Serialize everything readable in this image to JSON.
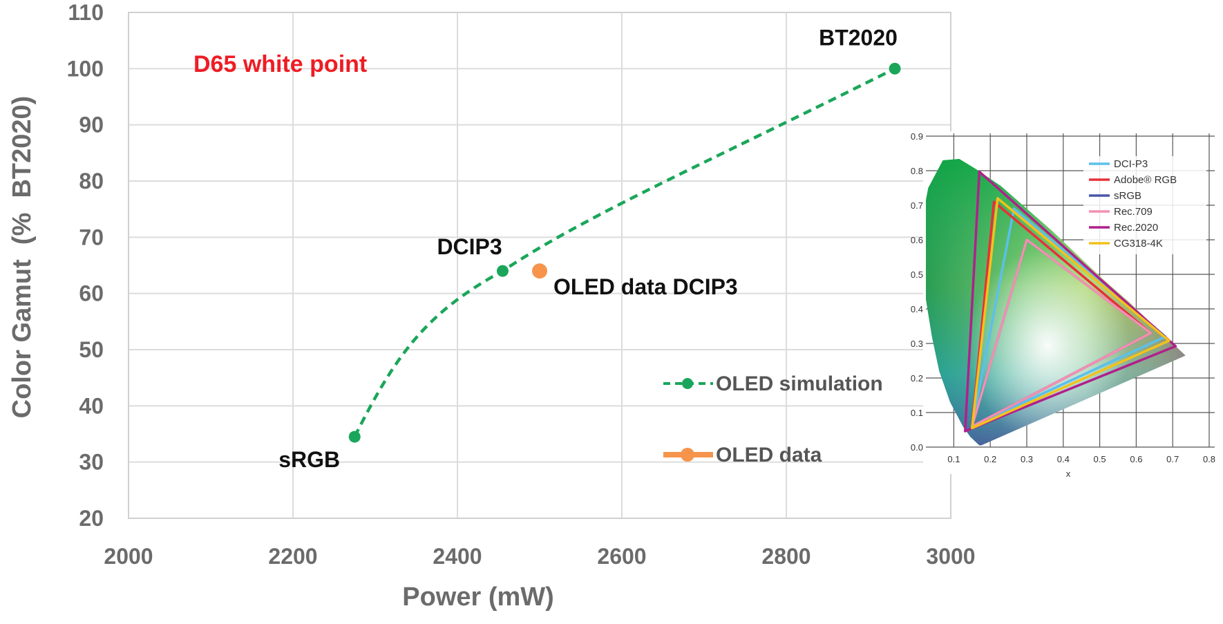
{
  "chart_data": {
    "type": "line",
    "xlabel": "Power (mW)",
    "ylabel": "Color Gamut  (%  BT2020)",
    "xlim": [
      2000,
      3000
    ],
    "ylim": [
      20,
      110
    ],
    "xticks": [
      "2000",
      "2200",
      "2400",
      "2600",
      "2800",
      "3000"
    ],
    "yticks": [
      "20",
      "30",
      "40",
      "50",
      "60",
      "70",
      "80",
      "90",
      "100",
      "110"
    ],
    "grid": true,
    "series": [
      {
        "name": "OLED simulation",
        "style": "dashed-markers",
        "color": "#1aa65a",
        "points": [
          {
            "x": 2275,
            "y": 34.5,
            "label": "sRGB"
          },
          {
            "x": 2455,
            "y": 64,
            "label": "DCIP3"
          },
          {
            "x": 2932,
            "y": 100,
            "label": "BT2020"
          }
        ]
      },
      {
        "name": "OLED data",
        "style": "marker",
        "color": "#f6944c",
        "points": [
          {
            "x": 2500,
            "y": 64,
            "label": "OLED data DCIP3"
          }
        ]
      }
    ],
    "annotations": [
      {
        "text": "D65 white point",
        "color": "#ee1c24"
      }
    ],
    "legend_position": "bottom-right",
    "inset": {
      "type": "cie-chromaticity",
      "xlabel": "x",
      "xticks": [
        "0.1",
        "0.2",
        "0.3",
        "0.4",
        "0.5",
        "0.6",
        "0.7",
        "0.8"
      ],
      "yticks": [
        "0.0",
        "0.1",
        "0.2",
        "0.3",
        "0.4",
        "0.5",
        "0.6",
        "0.7",
        "0.8",
        "0.9"
      ],
      "gamuts": [
        {
          "name": "DCI-P3",
          "color": "#5bc0eb",
          "primaries": [
            [
              0.68,
              0.32
            ],
            [
              0.265,
              0.69
            ],
            [
              0.15,
              0.06
            ]
          ]
        },
        {
          "name": "Adobe® RGB",
          "color": "#e8303a",
          "primaries": [
            [
              0.64,
              0.33
            ],
            [
              0.21,
              0.71
            ],
            [
              0.15,
              0.06
            ]
          ]
        },
        {
          "name": "sRGB",
          "color": "#4a56a8",
          "primaries": [
            [
              0.64,
              0.33
            ],
            [
              0.3,
              0.6
            ],
            [
              0.15,
              0.06
            ]
          ]
        },
        {
          "name": "Rec.709",
          "color": "#f48fb1",
          "primaries": [
            [
              0.64,
              0.33
            ],
            [
              0.3,
              0.6
            ],
            [
              0.15,
              0.06
            ]
          ]
        },
        {
          "name": "Rec.2020",
          "color": "#b0208c",
          "primaries": [
            [
              0.708,
              0.292
            ],
            [
              0.17,
              0.797
            ],
            [
              0.131,
              0.046
            ]
          ]
        },
        {
          "name": "CG318-4K",
          "color": "#f2c21b",
          "primaries": [
            [
              0.69,
              0.308
            ],
            [
              0.22,
              0.72
            ],
            [
              0.15,
              0.055
            ]
          ]
        }
      ]
    }
  }
}
